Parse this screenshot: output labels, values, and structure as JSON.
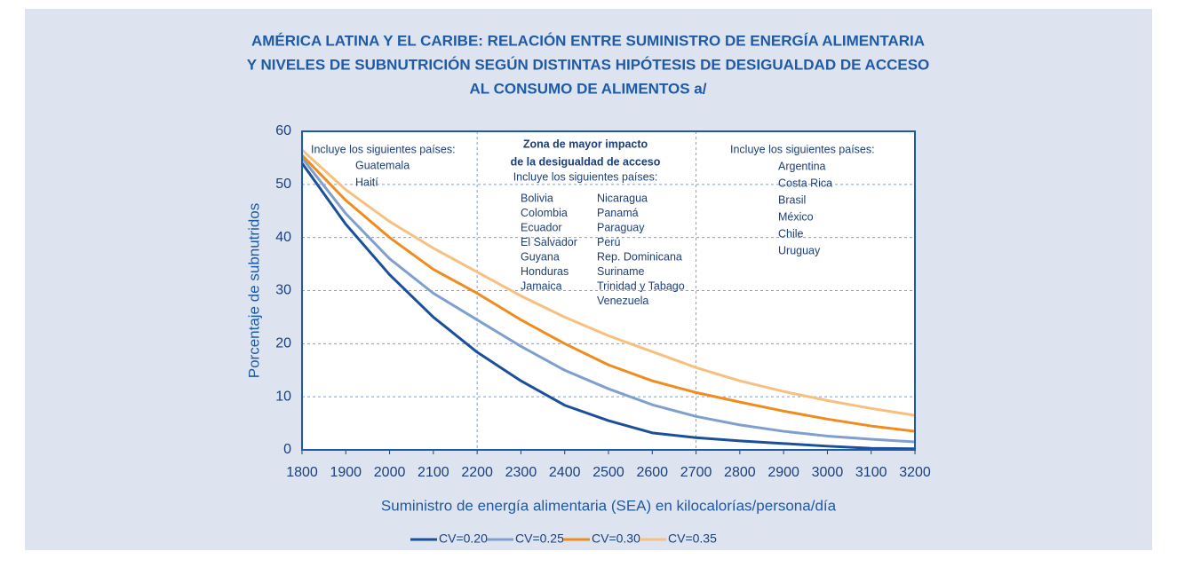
{
  "chart_data": {
    "type": "line",
    "title": [
      "AMÉRICA LATINA Y EL CARIBE: RELACIÓN ENTRE SUMINISTRO DE ENERGÍA ALIMENTARIA",
      "Y NIVELES DE SUBNUTRICIÓN SEGÚN DISTINTAS HIPÓTESIS DE DESIGUALDAD DE ACCESO",
      "AL CONSUMO DE ALIMENTOS a/"
    ],
    "xlabel": "Suministro de energía alimentaria (SEA) en kilocalorías/persona/día",
    "ylabel": "Porcentaje de subnutridos",
    "x": [
      1800,
      1900,
      2000,
      2100,
      2200,
      2300,
      2400,
      2500,
      2600,
      2700,
      2800,
      2900,
      3000,
      3100,
      3200
    ],
    "series": [
      {
        "name": "CV=0.20",
        "color": "#1a4f9c",
        "values": [
          54,
          42.5,
          33,
          25,
          18.4,
          13,
          8.4,
          5.5,
          3.2,
          2.3,
          1.7,
          1.2,
          0.7,
          0.3,
          0.2
        ]
      },
      {
        "name": "CV=0.25",
        "color": "#7f9fcf",
        "values": [
          55,
          44.5,
          36,
          29.5,
          24.5,
          19.5,
          15,
          11.5,
          8.5,
          6.3,
          4.7,
          3.5,
          2.6,
          2,
          1.5
        ]
      },
      {
        "name": "CV=0.30",
        "color": "#f08c1e",
        "values": [
          55.5,
          47,
          40,
          34,
          29.5,
          24.5,
          20,
          16,
          13,
          10.8,
          9,
          7.3,
          5.8,
          4.5,
          3.5
        ]
      },
      {
        "name": "CV=0.35",
        "color": "#f7c07e",
        "values": [
          56.5,
          49,
          43,
          38,
          33.5,
          29,
          25,
          21.5,
          18.5,
          15.5,
          13,
          11,
          9.3,
          7.8,
          6.5
        ]
      }
    ],
    "xlim": [
      1800,
      3200
    ],
    "xticks": [
      1800,
      1900,
      2000,
      2100,
      2200,
      2300,
      2400,
      2500,
      2600,
      2700,
      2800,
      2900,
      3000,
      3100,
      3200
    ],
    "ylim": [
      0,
      60
    ],
    "yticks": [
      0,
      10,
      20,
      30,
      40,
      50,
      60
    ],
    "grid": true,
    "zone_lines": [
      2200,
      2700
    ],
    "annotations": {
      "left": {
        "heading": "Incluye los siguientes países:",
        "items": [
          "Guatemala",
          "Haití"
        ]
      },
      "middle": {
        "heading": [
          "Zona de mayor impacto",
          "de la desigualdad de acceso"
        ],
        "subheading": "Incluye los siguientes países:",
        "items_a": [
          "Bolivia",
          "Colombia",
          "Ecuador",
          "El Salvador",
          "Guyana",
          "Honduras",
          "Jamaica"
        ],
        "items_b": [
          "Nicaragua",
          "Panamá",
          "Paraguay",
          "Perú",
          "Rep. Dominicana",
          "Suriname",
          "Trinidad y Tabago",
          "Venezuela"
        ]
      },
      "right": {
        "heading": "Incluye los siguientes países:",
        "items": [
          "Argentina",
          "Costa Rica",
          "Brasil",
          "México",
          "Chile",
          "Uruguay"
        ]
      }
    },
    "legend": "bottom"
  }
}
